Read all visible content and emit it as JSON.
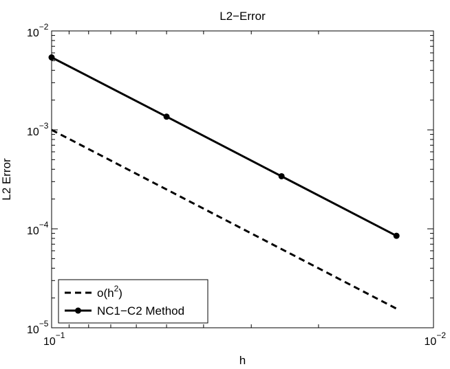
{
  "chart_data": {
    "type": "line",
    "title": "L2−Error",
    "xlabel": "h",
    "ylabel": "L2 Error",
    "xscale": "log",
    "yscale": "log",
    "x_reversed": true,
    "xlim": [
      0.1,
      0.01
    ],
    "ylim": [
      1e-05,
      0.01
    ],
    "xticks": [
      {
        "value": 0.1,
        "base": "10",
        "exp": "−1"
      },
      {
        "value": 0.01,
        "base": "10",
        "exp": "−2"
      }
    ],
    "yticks": [
      {
        "value": 0.01,
        "base": "10",
        "exp": "−2"
      },
      {
        "value": 0.001,
        "base": "10",
        "exp": "−3"
      },
      {
        "value": 0.0001,
        "base": "10",
        "exp": "−4"
      },
      {
        "value": 1e-05,
        "base": "10",
        "exp": "−5"
      }
    ],
    "grid": false,
    "legend_position": "bottom-left",
    "series": [
      {
        "name": "o(h²)",
        "legend_base": "o(h",
        "legend_sup": "2",
        "legend_tail": ")",
        "style": "dashed",
        "marker": "none",
        "color": "#000000",
        "x": [
          0.1,
          0.0125
        ],
        "y": [
          0.001,
          1.56e-05
        ]
      },
      {
        "name": "NC1−C2 Method",
        "legend_base": "NC1−C2 Method",
        "legend_sup": "",
        "legend_tail": "",
        "style": "solid",
        "marker": "circle",
        "color": "#000000",
        "x": [
          0.1,
          0.05,
          0.025,
          0.0125
        ],
        "y": [
          0.0054,
          0.00136,
          0.00034,
          8.5e-05
        ]
      }
    ]
  }
}
